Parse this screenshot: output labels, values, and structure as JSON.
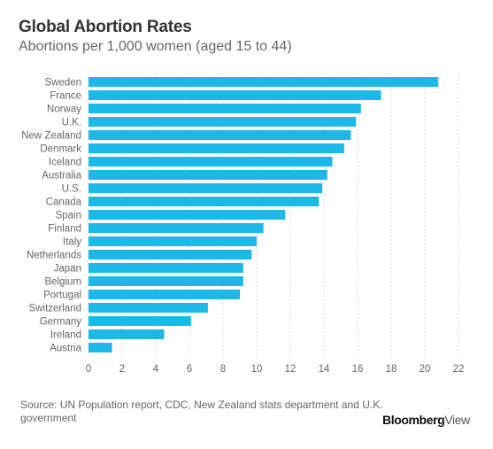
{
  "title": "Global Abortion Rates",
  "subtitle": "Abortions per 1,000 women (aged 15 to 44)",
  "source": "Source: UN Population report, CDC, New Zealand stats department and U.K. government",
  "brand": {
    "bold": "Bloomberg",
    "light": "View"
  },
  "colors": {
    "bar": "#1cb8e8",
    "grid": "#dddddd",
    "text": "#666666"
  },
  "chart_data": {
    "type": "bar",
    "orientation": "horizontal",
    "categories": [
      "Sweden",
      "France",
      "Norway",
      "U.K.",
      "New Zealand",
      "Denmark",
      "Iceland",
      "Australia",
      "U.S.",
      "Canada",
      "Spain",
      "Finland",
      "Italy",
      "Netherlands",
      "Japan",
      "Belgium",
      "Portugal",
      "Switzerland",
      "Germany",
      "Ireland",
      "Austria"
    ],
    "values": [
      20.8,
      17.4,
      16.2,
      15.9,
      15.6,
      15.2,
      14.5,
      14.2,
      13.9,
      13.7,
      11.7,
      10.4,
      10.0,
      9.7,
      9.2,
      9.2,
      9.0,
      7.1,
      6.1,
      4.5,
      1.4
    ],
    "title": "Global Abortion Rates",
    "subtitle": "Abortions per 1,000 women (aged 15 to 44)",
    "xlim": [
      0,
      22
    ],
    "xticks": [
      0,
      2,
      4,
      6,
      8,
      10,
      12,
      14,
      16,
      18,
      20,
      22
    ],
    "grid": "vertical dashed"
  }
}
